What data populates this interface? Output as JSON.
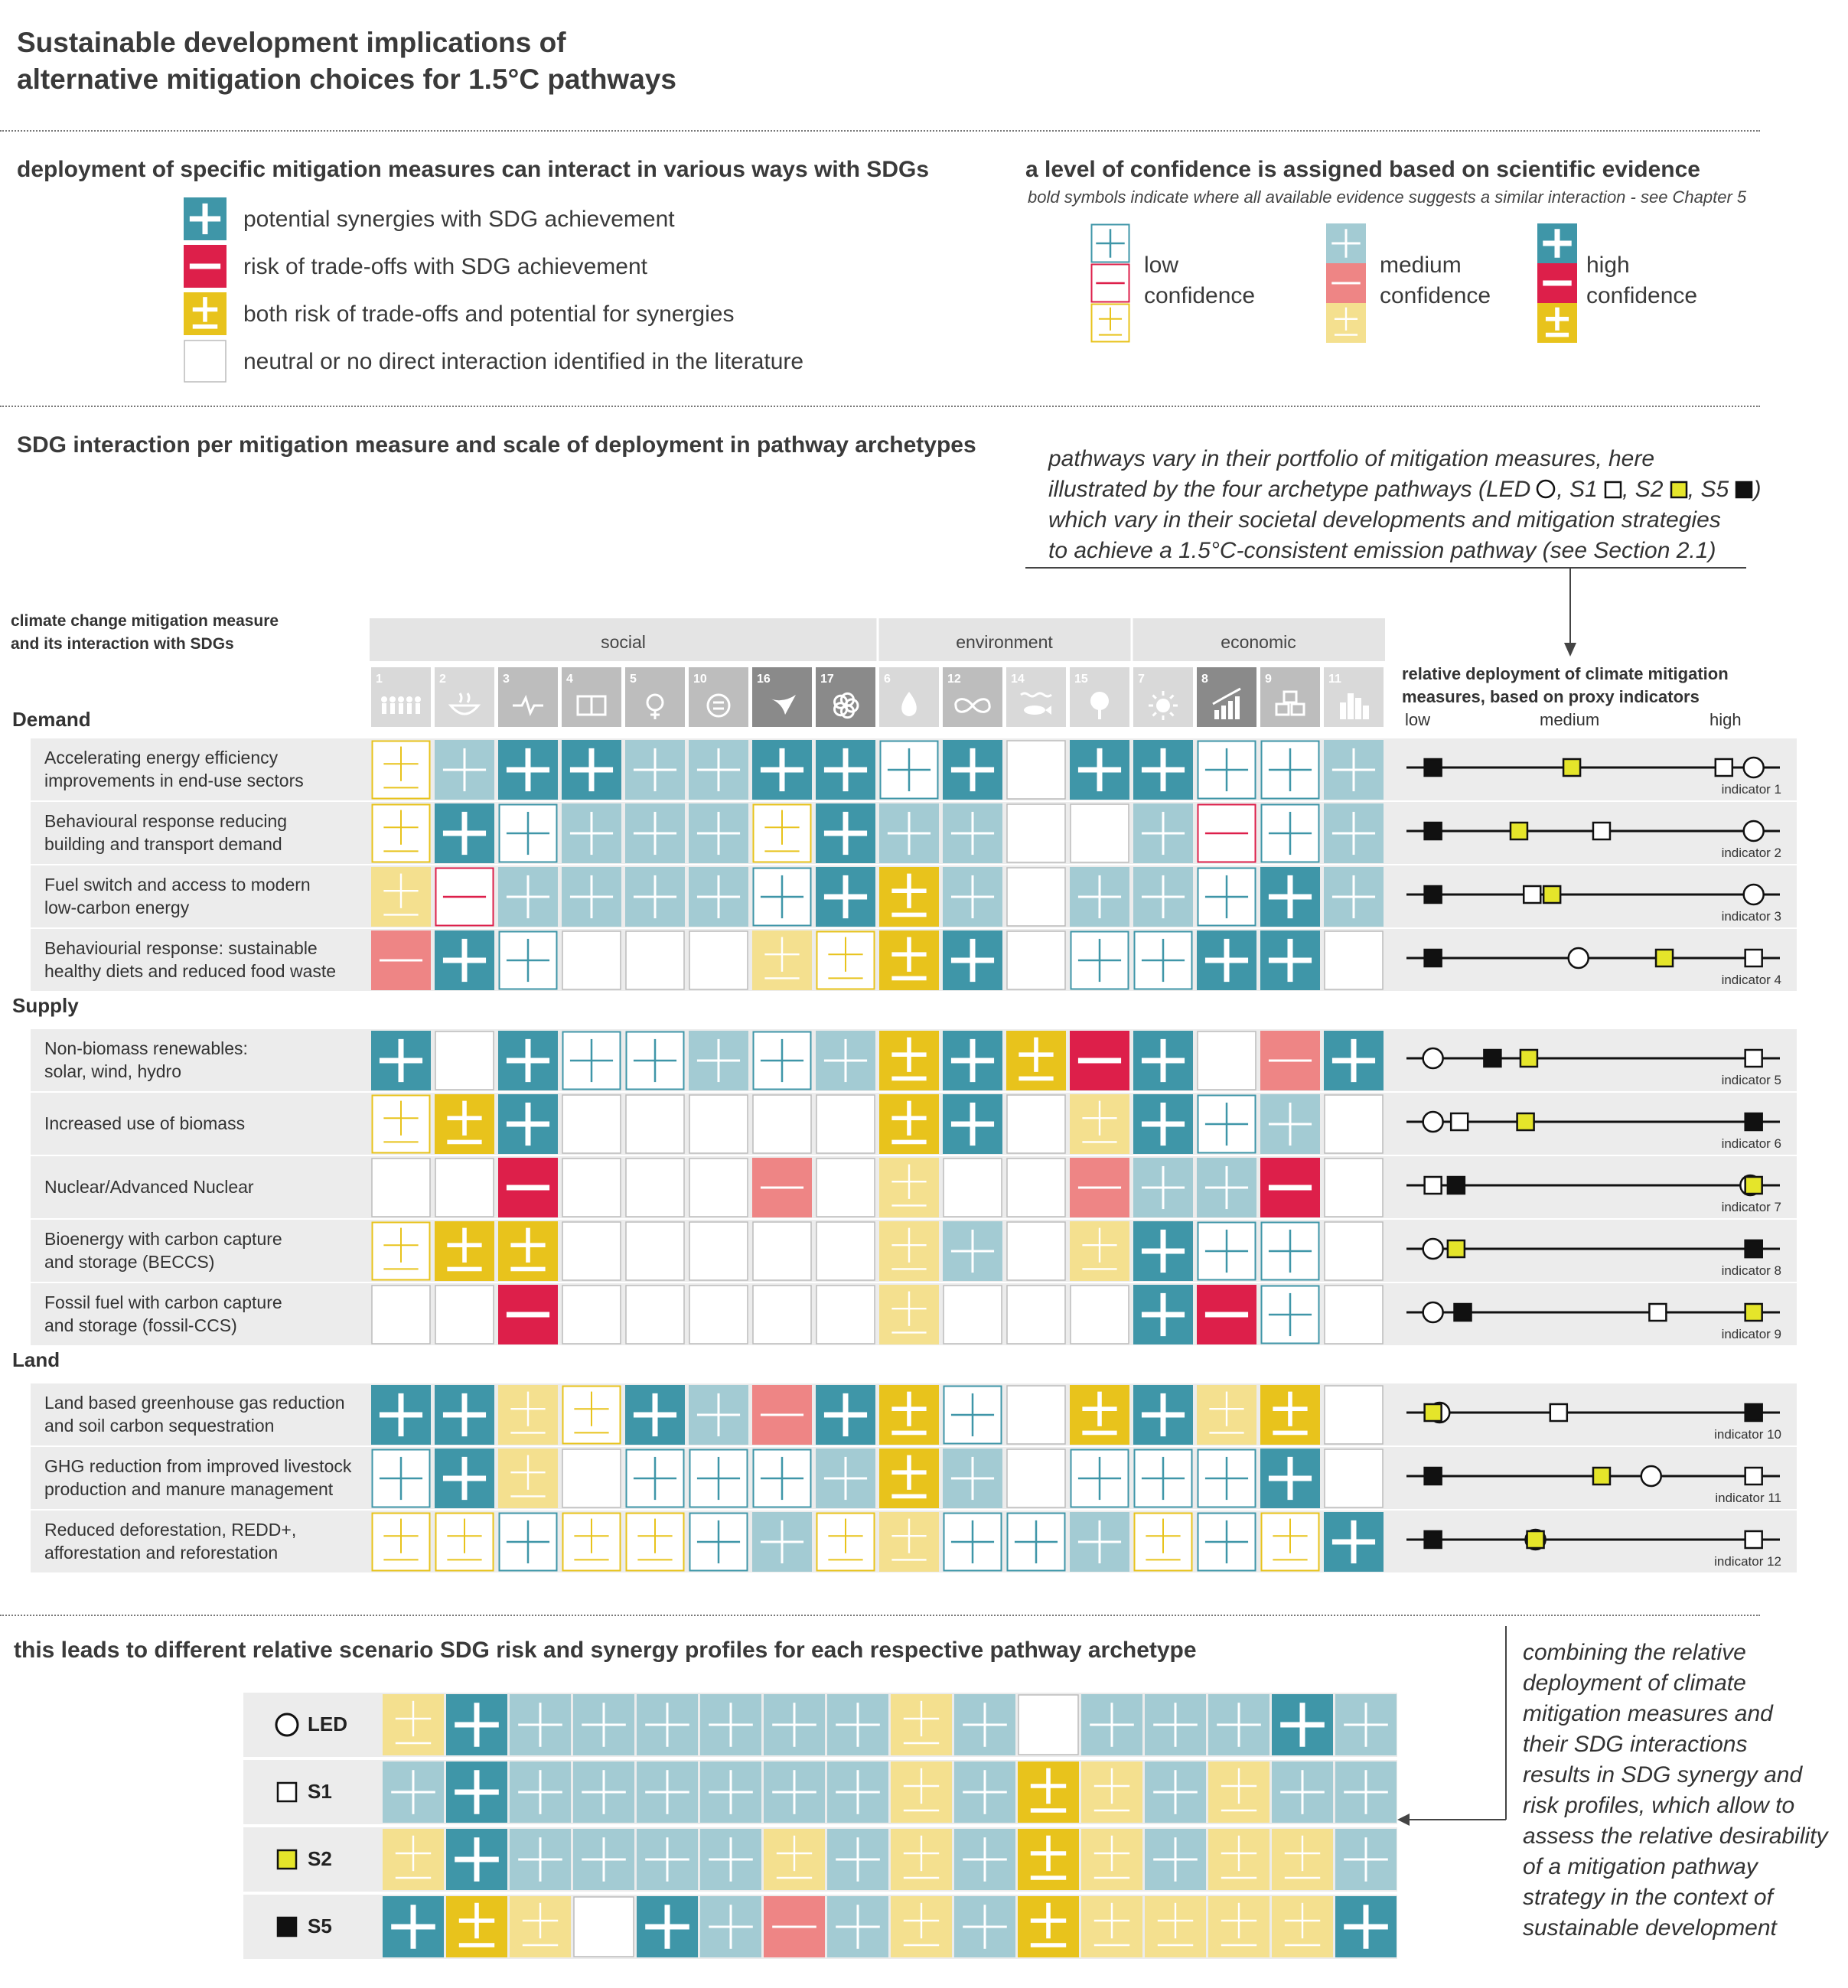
{
  "title": {
    "line1": "Sustainable development implications of",
    "line2": "alternative mitigation choices for 1.5°C pathways"
  },
  "colors": {
    "teal": "#3f96a8",
    "teal_medium": "#a3cbd3",
    "red": "#dd1f4a",
    "red_medium": "#ee8585",
    "yellow": "#e8c31c",
    "yellow_medium": "#f4e08f",
    "row_bg": "#ececec",
    "header_bg": "#e4e4e4"
  },
  "legend": {
    "heading": "deployment of specific mitigation measures can interact in various ways with SDGs",
    "items": [
      {
        "symbol": "+",
        "label": "potential synergies with SDG achievement"
      },
      {
        "symbol": "−",
        "label": "risk of trade-offs with SDG achievement"
      },
      {
        "symbol": "±",
        "label": "both risk of trade-offs and potential for synergies"
      },
      {
        "symbol": "",
        "label": "neutral or no direct interaction identified in the literature"
      }
    ]
  },
  "confidence": {
    "heading": "a level of confidence is assigned based on scientific evidence",
    "subheading": "bold symbols indicate where all available evidence suggests a similar interaction - see Chapter 5",
    "low": {
      "line1": "low",
      "line2": "confidence"
    },
    "medium": {
      "line1": "medium",
      "line2": "confidence"
    },
    "high": {
      "line1": "high",
      "line2": "confidence"
    }
  },
  "matrix": {
    "heading": "SDG interaction per mitigation measure and scale of deployment in pathway archetypes",
    "pathways_note": [
      "pathways vary in their portfolio of mitigation measures, here",
      "illustrated by the four archetype pathways (LED",
      "which vary in their societal developments and mitigation strategies",
      "to achieve a 1.5°C-consistent emission pathway (see Section 2.1)"
    ],
    "pathway_names": {
      "led": "LED",
      "s1": "S1",
      "s2": "S2",
      "s5": "S5"
    },
    "column_header": {
      "line1": "climate change mitigation measure",
      "line2": "and its interaction with SDGs"
    },
    "groups": [
      {
        "name": "social",
        "span": 8
      },
      {
        "name": "environment",
        "span": 4
      },
      {
        "name": "economic",
        "span": 4
      }
    ],
    "sdg_numbers": [
      "1",
      "2",
      "3",
      "4",
      "5",
      "10",
      "16",
      "17",
      "6",
      "12",
      "14",
      "15",
      "7",
      "8",
      "9",
      "11"
    ],
    "sdg_icons": [
      "family-icon",
      "bowl-icon",
      "heartbeat-icon",
      "book-icon",
      "gender-icon",
      "equality-icon",
      "dove-icon",
      "flower-icon",
      "droplet-icon",
      "infinity-icon",
      "fish-icon",
      "tree-icon",
      "sun-icon",
      "growth-chart-icon",
      "cubes-icon",
      "city-icon"
    ],
    "deployment_header": {
      "line1": "relative deployment of climate mitigation",
      "line2": "measures, based on proxy indicators"
    },
    "deployment_axis": {
      "low": "low",
      "medium": "medium",
      "high": "high"
    },
    "categories": [
      {
        "name": "Demand",
        "rows": [
          {
            "label": [
              "Accelerating energy efficiency",
              "improvements in end-use sectors"
            ],
            "cells": [
              "Y1",
              "T2",
              "T3",
              "T3",
              "T2",
              "T2",
              "T3",
              "T3",
              "T1",
              "T3",
              "",
              "T3",
              "T3",
              "T1",
              "T1",
              "T2"
            ],
            "indicator": "indicator 1",
            "markers": {
              "S5": 0.02,
              "S2": 0.44,
              "S1": 0.9,
              "LED": 0.99
            }
          },
          {
            "label": [
              "Behavioural response reducing",
              "building and transport demand"
            ],
            "cells": [
              "Y1",
              "T3",
              "T1",
              "T2",
              "T2",
              "T2",
              "Y1",
              "T3",
              "T2",
              "T2",
              "",
              "",
              "T2",
              "R1",
              "T1",
              "T2"
            ],
            "indicator": "indicator 2",
            "markers": {
              "S5": 0.02,
              "S2": 0.28,
              "S1": 0.53,
              "LED": 0.99
            }
          },
          {
            "label": [
              "Fuel switch and access to modern",
              "low-carbon energy"
            ],
            "cells": [
              "Y2",
              "R1",
              "T2",
              "T2",
              "T2",
              "T2",
              "T1",
              "T3",
              "Y3",
              "T2",
              "",
              "T2",
              "T2",
              "T1",
              "T3",
              "T2"
            ],
            "indicator": "indicator 3",
            "markers": {
              "S5": 0.02,
              "S1": 0.32,
              "S2": 0.38,
              "LED": 0.99
            }
          },
          {
            "label": [
              "Behaviourial response: sustainable",
              "healthy diets and reduced food waste"
            ],
            "cells": [
              "R2",
              "T3",
              "T1",
              "",
              "",
              "",
              "Y2",
              "Y1",
              "Y3",
              "T3",
              "",
              "T1",
              "T1",
              "T3",
              "T3",
              ""
            ],
            "indicator": "indicator 4",
            "markers": {
              "S5": 0.02,
              "LED": 0.46,
              "S2": 0.72,
              "S1": 0.99
            }
          }
        ]
      },
      {
        "name": "Supply",
        "rows": [
          {
            "label": [
              "Non-biomass renewables:",
              "solar, wind, hydro"
            ],
            "cells": [
              "T3",
              "",
              "T3",
              "T1",
              "T1",
              "T2",
              "T1",
              "T2",
              "Y3",
              "T3",
              "Y3",
              "R3",
              "T3",
              "",
              "R2",
              "T3"
            ],
            "indicator": "indicator 5",
            "markers": {
              "LED": 0.02,
              "S5": 0.2,
              "S2": 0.31,
              "S1": 0.99
            }
          },
          {
            "label": [
              "Increased use of biomass"
            ],
            "cells": [
              "Y1",
              "Y3",
              "T3",
              "",
              "",
              "",
              "",
              "",
              "Y3",
              "T3",
              "",
              "Y2",
              "T3",
              "T1",
              "T2",
              ""
            ],
            "indicator": "indicator 6",
            "markers": {
              "LED": 0.02,
              "S1": 0.1,
              "S2": 0.3,
              "S5": 0.99
            }
          },
          {
            "label": [
              "Nuclear/Advanced Nuclear"
            ],
            "cells": [
              "",
              "",
              "R3",
              "",
              "",
              "",
              "R2",
              "",
              "Y2",
              "",
              "",
              "R2",
              "T2",
              "T2",
              "R3",
              ""
            ],
            "indicator": "indicator 7",
            "markers": {
              "S1": 0.02,
              "S5": 0.09,
              "S2": 0.99,
              "LED": 0.98
            }
          },
          {
            "label": [
              "Bioenergy with carbon capture",
              "and storage (BECCS)"
            ],
            "cells": [
              "Y1",
              "Y3",
              "Y3",
              "",
              "",
              "",
              "",
              "",
              "Y2",
              "T2",
              "",
              "Y2",
              "T3",
              "T1",
              "T1",
              ""
            ],
            "indicator": "indicator 8",
            "markers": {
              "LED": 0.02,
              "S2": 0.09,
              "S5": 0.99,
              "S1": 0.99
            }
          },
          {
            "label": [
              "Fossil fuel with carbon capture",
              "and storage (fossil-CCS)"
            ],
            "cells": [
              "",
              "",
              "R3",
              "",
              "",
              "",
              "",
              "",
              "Y2",
              "",
              "",
              "",
              "T3",
              "R3",
              "T1",
              ""
            ],
            "indicator": "indicator 9",
            "markers": {
              "LED": 0.02,
              "S5": 0.11,
              "S1": 0.7,
              "S2": 0.99
            }
          }
        ]
      },
      {
        "name": "Land",
        "rows": [
          {
            "label": [
              "Land based greenhouse gas reduction",
              "and soil carbon sequestration"
            ],
            "cells": [
              "T3",
              "T3",
              "Y2",
              "Y1",
              "T3",
              "T2",
              "R2",
              "T3",
              "Y3",
              "T1",
              "",
              "Y3",
              "T3",
              "Y2",
              "Y3",
              ""
            ],
            "indicator": "indicator 10",
            "markers": {
              "S2": 0.02,
              "LED": 0.04,
              "S1": 0.4,
              "S5": 0.99
            }
          },
          {
            "label": [
              "GHG reduction from improved livestock",
              "production and manure management"
            ],
            "cells": [
              "T1",
              "T3",
              "Y2",
              "",
              "T1",
              "T1",
              "T1",
              "T2",
              "Y3",
              "T2",
              "",
              "T1",
              "T1",
              "T1",
              "T3",
              ""
            ],
            "indicator": "indicator 11",
            "markers": {
              "S5": 0.02,
              "S2": 0.53,
              "LED": 0.68,
              "S1": 0.99
            }
          },
          {
            "label": [
              "Reduced deforestation, REDD+,",
              "afforestation and reforestation"
            ],
            "cells": [
              "Y1",
              "Y1",
              "T1",
              "Y1",
              "Y1",
              "T1",
              "T2",
              "Y1",
              "Y2",
              "T1",
              "T1",
              "T2",
              "Y1",
              "T1",
              "Y1",
              "T3"
            ],
            "indicator": "indicator 12",
            "markers": {
              "S5": 0.02,
              "LED": 0.33,
              "S2": 0.33,
              "S1": 0.99
            }
          }
        ]
      }
    ]
  },
  "profiles": {
    "heading": "this leads to different relative scenario SDG risk and synergy profiles for each respective pathway archetype",
    "note": [
      "combining the relative",
      "deployment of climate",
      "mitigation measures and",
      "their SDG interactions",
      "results in SDG synergy and",
      "risk profiles, which allow to",
      "assess the relative desirability",
      "of a mitigation pathway",
      "strategy in the context of",
      "sustainable development"
    ],
    "rows": [
      {
        "name": "LED",
        "marker": "circle",
        "cells": [
          "Y2",
          "T3",
          "T2",
          "T2",
          "T2",
          "T2",
          "T2",
          "T2",
          "Y2",
          "T2",
          "",
          "T2",
          "T2",
          "T2",
          "T3",
          "T2"
        ]
      },
      {
        "name": "S1",
        "marker": "square-white",
        "cells": [
          "T2",
          "T3",
          "T2",
          "T2",
          "T2",
          "T2",
          "T2",
          "T2",
          "Y2",
          "T2",
          "Y3",
          "Y2",
          "T2",
          "Y2",
          "T2",
          "T2"
        ]
      },
      {
        "name": "S2",
        "marker": "square-yellow",
        "cells": [
          "Y2",
          "T3",
          "T2",
          "T2",
          "T2",
          "T2",
          "Y2",
          "T2",
          "Y2",
          "T2",
          "Y3",
          "Y2",
          "T2",
          "Y2",
          "Y2",
          "T2"
        ]
      },
      {
        "name": "S5",
        "marker": "square-black",
        "cells": [
          "T3",
          "Y3",
          "Y2",
          "",
          "T3",
          "T2",
          "R2",
          "T2",
          "Y2",
          "T2",
          "Y3",
          "Y2",
          "Y2",
          "Y2",
          "Y2",
          "T3"
        ]
      }
    ]
  }
}
